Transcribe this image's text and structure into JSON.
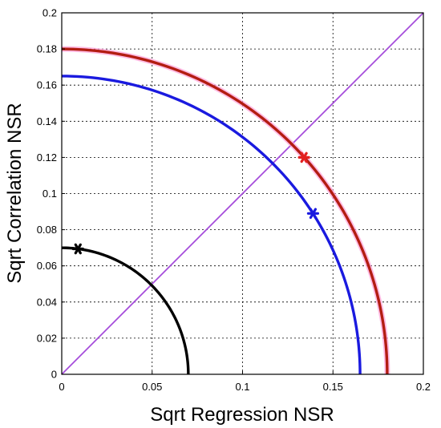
{
  "chart_data": {
    "type": "line",
    "title": "",
    "xlabel": "Sqrt Regression NSR",
    "ylabel": "Sqrt Correlation NSR",
    "xlim": [
      0,
      0.2
    ],
    "ylim": [
      0,
      0.2
    ],
    "grid": true,
    "x_ticks": [
      "0",
      "0.05",
      "0.1",
      "0.15",
      "0.2"
    ],
    "y_ticks": [
      "0",
      "0.02",
      "0.04",
      "0.06",
      "0.08",
      "0.1",
      "0.12",
      "0.14",
      "0.16",
      "0.18",
      "0.2"
    ],
    "x_tick_values": [
      0,
      0.05,
      0.1,
      0.15,
      0.2
    ],
    "y_tick_values": [
      0,
      0.02,
      0.04,
      0.06,
      0.08,
      0.1,
      0.12,
      0.14,
      0.16,
      0.18,
      0.2
    ],
    "series": [
      {
        "kind": "quarter-circle",
        "radius": 0.07,
        "color": "#000000",
        "marker": {
          "x": 0.009,
          "y": 0.0694
        }
      },
      {
        "kind": "quarter-circle",
        "radius": 0.165,
        "color": "#1a1adf",
        "marker": {
          "x": 0.139,
          "y": 0.089
        }
      },
      {
        "kind": "quarter-circle",
        "radius": 0.18,
        "color": "#b31d12",
        "highlight": "#ff9fd8",
        "marker": {
          "x": 0.134,
          "y": 0.12,
          "color": "#e32020"
        }
      },
      {
        "kind": "diagonal",
        "points": [
          [
            0,
            0
          ],
          [
            0.2,
            0.2
          ]
        ],
        "color": "#a64ddb"
      }
    ]
  }
}
